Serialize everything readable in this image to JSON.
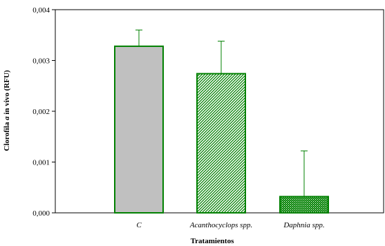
{
  "chart_data": {
    "type": "bar",
    "categories": [
      "C",
      "Acanthocyclops spp.",
      "Daphnia spp."
    ],
    "values": [
      0.00328,
      0.00274,
      0.00032
    ],
    "errors_upper": [
      0.0036,
      0.00338,
      0.00122
    ],
    "xlabel": "Tratamientos",
    "ylabel_parts": [
      "Clorofila ",
      "a",
      " in vivo (RFU)"
    ],
    "ylim": [
      0,
      0.004
    ],
    "yticks": [
      0,
      0.001,
      0.002,
      0.003,
      0.004
    ],
    "ytick_labels": [
      "0,000",
      "0,001",
      "0,002",
      "0,003",
      "0,004"
    ],
    "grid": false,
    "bar_styles": [
      {
        "fill": "solid",
        "color": "#c0c0c0",
        "edge": "#008000"
      },
      {
        "fill": "diagonal-hatch",
        "color": "#008000",
        "edge": "#008000"
      },
      {
        "fill": "dotted",
        "color": "#008000",
        "edge": "#008000"
      }
    ],
    "error_bar_color": "#008000"
  }
}
